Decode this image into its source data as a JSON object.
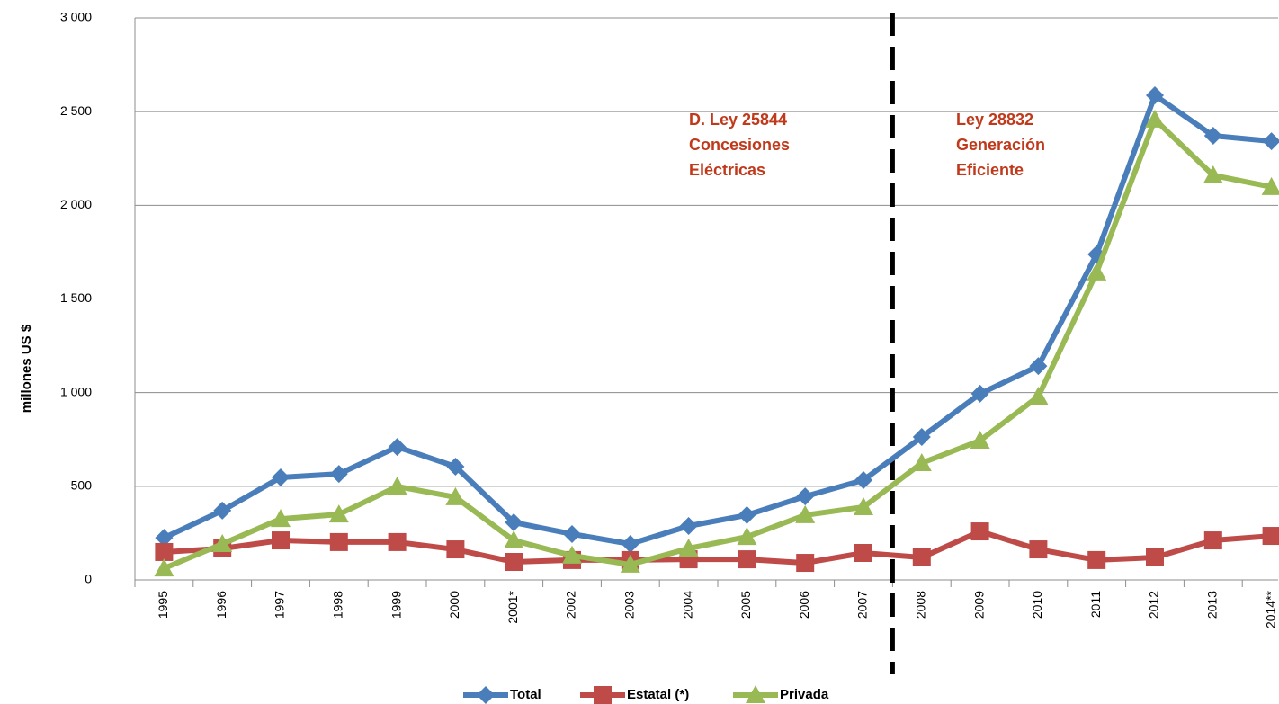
{
  "chart_data": {
    "type": "line",
    "y_label": "millones US $",
    "categories": [
      "1995",
      "1996",
      "1997",
      "1998",
      "1999",
      "2000",
      "2001*",
      "2002",
      "2003",
      "2004",
      "2005",
      "2006",
      "2007",
      "2008",
      "2009",
      "2010",
      "2011",
      "2012",
      "2013",
      "2014**"
    ],
    "series": [
      {
        "name": "Total",
        "color": "#4a7ebb",
        "marker": "diamond",
        "values": [
          225,
          370,
          547,
          566,
          710,
          605,
          307,
          245,
          192,
          288,
          346,
          446,
          533,
          763,
          994,
          1142,
          1738,
          2587,
          2371,
          2342
        ]
      },
      {
        "name": "Estatal (*)",
        "color": "#be4b48",
        "marker": "square",
        "values": [
          149,
          168,
          211,
          202,
          202,
          163,
          96,
          106,
          106,
          110,
          110,
          91,
          144,
          120,
          259,
          163,
          106,
          120,
          211,
          235
        ]
      },
      {
        "name": "Privada",
        "color": "#98b954",
        "marker": "triangle",
        "values": [
          62,
          192,
          326,
          350,
          499,
          442,
          211,
          130,
          82,
          168,
          230,
          346,
          389,
          624,
          744,
          979,
          1642,
          2458,
          2160,
          2098
        ]
      }
    ],
    "ylim": [
      0,
      3000
    ],
    "yticks": [
      0,
      500,
      {
        "value": 1000,
        "label": "1 000"
      },
      {
        "value": 1500,
        "label": "1 500"
      },
      {
        "value": 2000,
        "label": "2 000"
      },
      {
        "value": 2500,
        "label": "2 500"
      },
      {
        "value": 3000,
        "label": "3 000"
      }
    ],
    "grid": true,
    "legend": "bottom",
    "annotations": [
      [
        "D. Ley 25844",
        "Concesiones",
        "Eléctricas"
      ],
      [
        "Ley 28832",
        "Generación",
        "Eficiente"
      ]
    ]
  }
}
